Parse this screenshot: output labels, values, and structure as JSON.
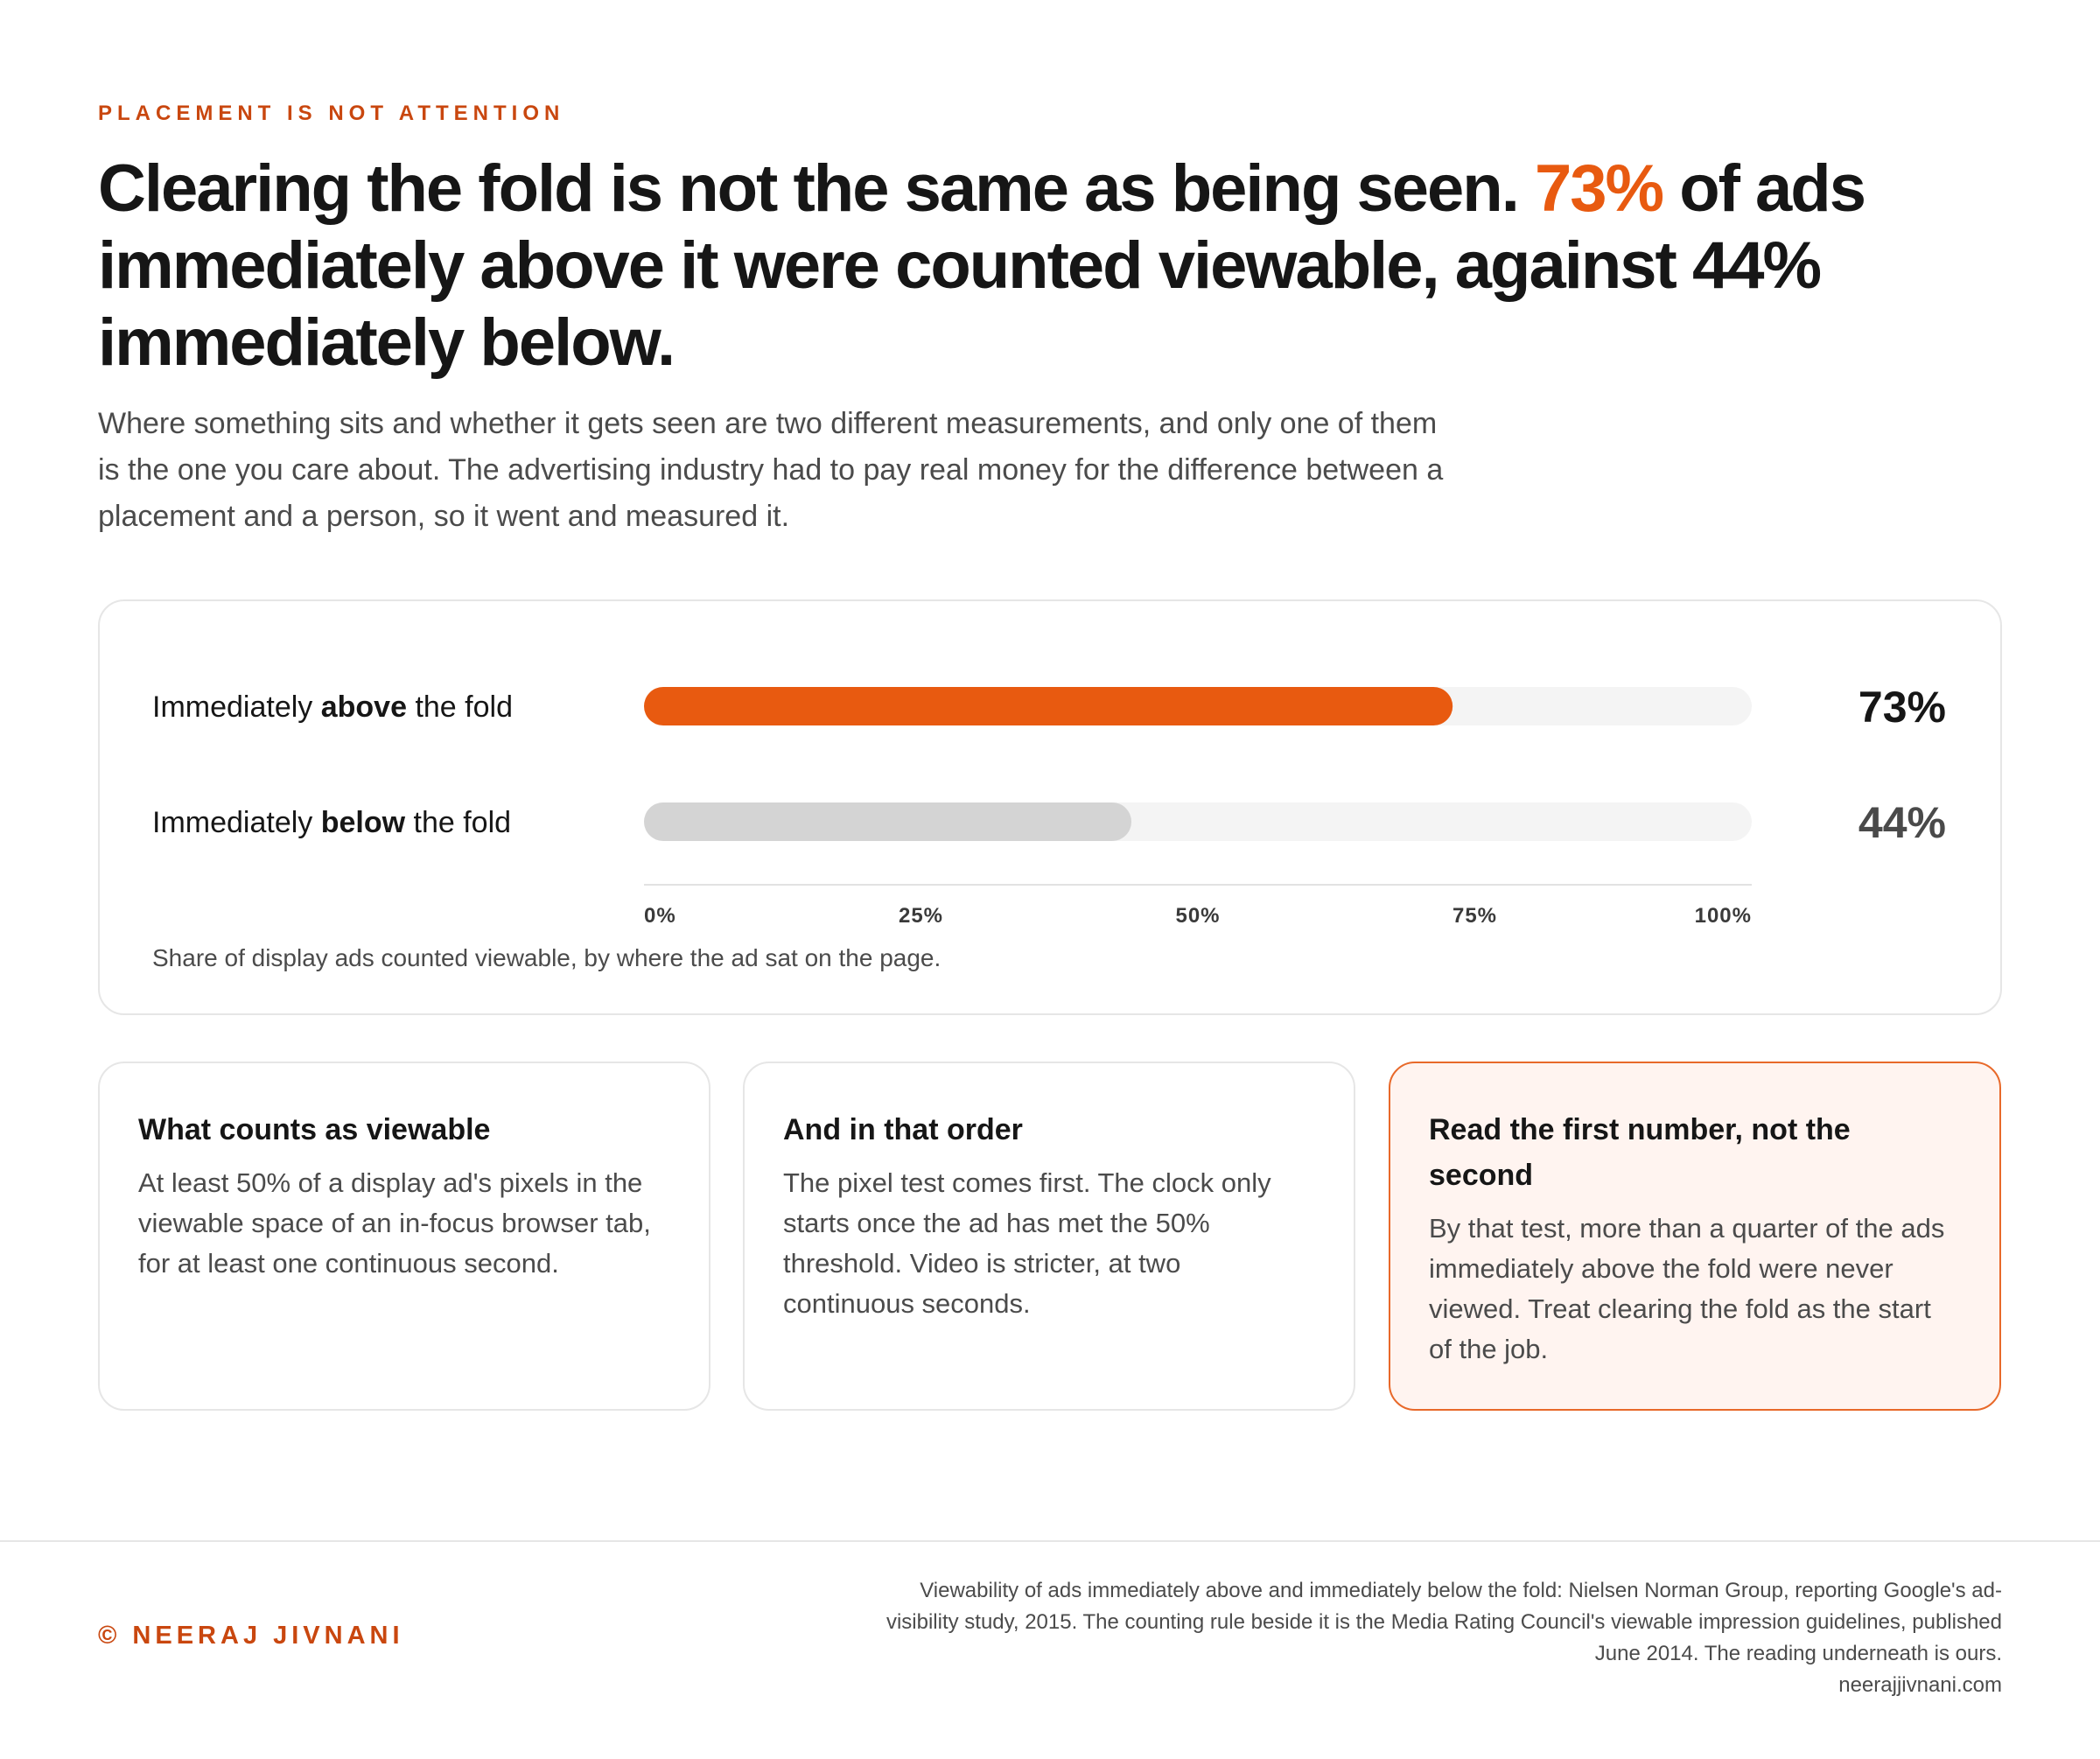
{
  "eyebrow": "PLACEMENT IS NOT ATTENTION",
  "headline": {
    "part1": "Clearing the fold is not the same as being seen. ",
    "accent": "73%",
    "part2": " of ads immediately above it were counted viewable, against 44% immediately below."
  },
  "dek": "Where something sits and whether it gets seen are two different measurements, and only one of them is the one you care about. The advertising industry had to pay real money for the difference between a placement and a person, so it went and measured it.",
  "colors": {
    "accent": "#e85a10",
    "eyebrow": "#c9470f",
    "muted_bar": "#d4d4d4",
    "track": "#f4f4f4",
    "highlight_card_bg": "#fff4f0",
    "highlight_card_border": "#e8692a"
  },
  "chart_data": {
    "type": "bar",
    "orientation": "horizontal",
    "categories": [
      {
        "pre": "Immediately ",
        "bold": "above",
        "post": " the fold"
      },
      {
        "pre": "Immediately ",
        "bold": "below",
        "post": " the fold"
      }
    ],
    "values": [
      73,
      44
    ],
    "value_labels": [
      "73%",
      "44%"
    ],
    "bar_colors": [
      "#e85a10",
      "#d4d4d4"
    ],
    "value_label_colors": [
      "#161616",
      "#4a4a4a"
    ],
    "xlim": [
      0,
      100
    ],
    "ticks": [
      0,
      25,
      50,
      75,
      100
    ],
    "tick_labels": [
      "0%",
      "25%",
      "50%",
      "75%",
      "100%"
    ],
    "caption": "Share of display ads counted viewable, by where the ad sat on the page."
  },
  "cards": [
    {
      "title": "What counts as viewable",
      "body": "At least 50% of a display ad's pixels in the viewable space of an in-focus browser tab, for at least one continuous second."
    },
    {
      "title": "And in that order",
      "body": "The pixel test comes first. The clock only starts once the ad has met the 50% threshold. Video is stricter, at two continuous seconds."
    },
    {
      "title": "Read the first number, not the second",
      "body": "By that test, more than a quarter of the ads immediately above the fold were never viewed. Treat clearing the fold as the start of the job."
    }
  ],
  "footer": {
    "brand": "© NEERAJ JIVNANI",
    "source_lines": [
      "Viewability of ads immediately above and immediately below the fold: Nielsen Norman Group, reporting Google's ad-",
      "visibility study, 2015. The counting rule beside it is the Media Rating Council's viewable impression guidelines, published",
      "June 2014. The reading underneath is ours.",
      "neerajjivnani.com"
    ]
  }
}
